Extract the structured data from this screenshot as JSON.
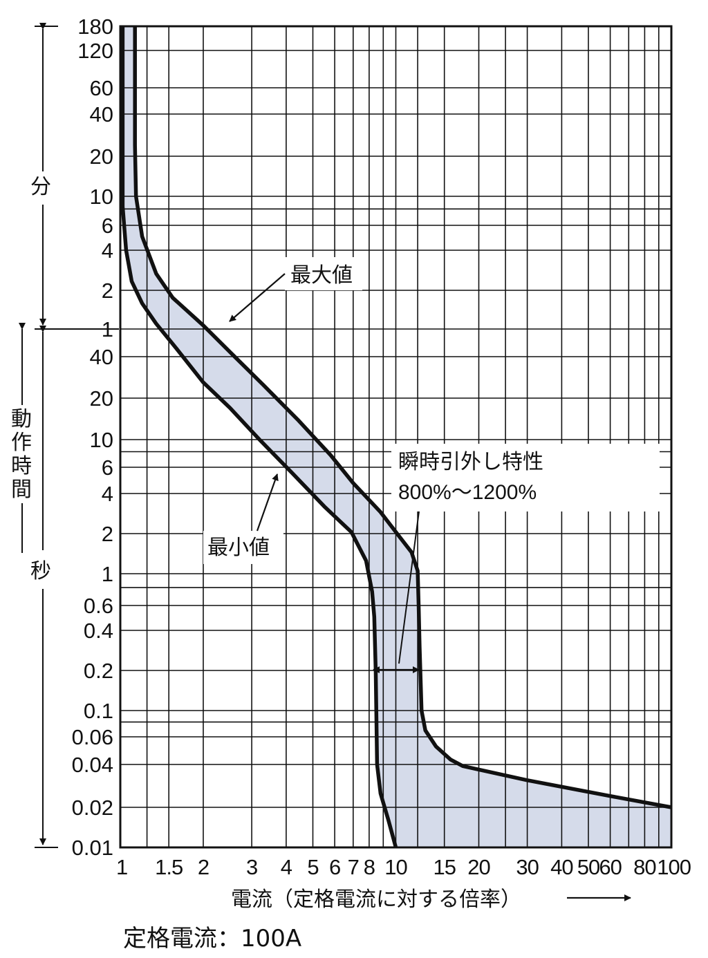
{
  "chart_data": {
    "type": "area",
    "x_scale": "log",
    "y_scale": "log",
    "xlim": [
      1,
      100
    ],
    "ylim_seconds": [
      0.01,
      10800
    ],
    "grid": true,
    "x_ticks": [
      {
        "value": 1,
        "label": "1"
      },
      {
        "value": 1.5,
        "label": "1.5"
      },
      {
        "value": 2,
        "label": "2"
      },
      {
        "value": 3,
        "label": "3"
      },
      {
        "value": 4,
        "label": "4"
      },
      {
        "value": 5,
        "label": "5"
      },
      {
        "value": 6,
        "label": "6"
      },
      {
        "value": 7,
        "label": "7"
      },
      {
        "value": 8,
        "label": "8"
      },
      {
        "value": 10,
        "label": "10"
      },
      {
        "value": 15,
        "label": "15"
      },
      {
        "value": 20,
        "label": "20"
      },
      {
        "value": 30,
        "label": "30"
      },
      {
        "value": 40,
        "label": "40"
      },
      {
        "value": 50,
        "label": "50"
      },
      {
        "value": 60,
        "label": "60"
      },
      {
        "value": 80,
        "label": "80"
      },
      {
        "value": 100,
        "label": "100"
      }
    ],
    "x_grid": [
      1.25,
      1.5,
      2,
      3,
      4,
      5,
      6,
      7,
      8,
      9,
      10,
      12,
      15,
      20,
      25,
      30,
      40,
      50,
      60,
      70,
      80,
      90
    ],
    "y_ticks": [
      {
        "seconds": 10800,
        "label": "180"
      },
      {
        "seconds": 7200,
        "label": "120"
      },
      {
        "seconds": 3600,
        "label": "60"
      },
      {
        "seconds": 2400,
        "label": "40"
      },
      {
        "seconds": 1200,
        "label": "20"
      },
      {
        "seconds": 600,
        "label": "10"
      },
      {
        "seconds": 360,
        "label": "6"
      },
      {
        "seconds": 240,
        "label": "4"
      },
      {
        "seconds": 120,
        "label": "2"
      },
      {
        "seconds": 60,
        "label": "1"
      },
      {
        "seconds": 40,
        "label": "40"
      },
      {
        "seconds": 20,
        "label": "20"
      },
      {
        "seconds": 10,
        "label": "10"
      },
      {
        "seconds": 6,
        "label": "6"
      },
      {
        "seconds": 4,
        "label": "4"
      },
      {
        "seconds": 2,
        "label": "2"
      },
      {
        "seconds": 1,
        "label": "1"
      },
      {
        "seconds": 0.6,
        "label": "0.6"
      },
      {
        "seconds": 0.4,
        "label": "0.4"
      },
      {
        "seconds": 0.2,
        "label": "0.2"
      },
      {
        "seconds": 0.1,
        "label": "0.1"
      },
      {
        "seconds": 0.06,
        "label": "0.06"
      },
      {
        "seconds": 0.04,
        "label": "0.04"
      },
      {
        "seconds": 0.02,
        "label": "0.02"
      },
      {
        "seconds": 0.01,
        "label": "0.01"
      }
    ],
    "y_grid_seconds": [
      10800,
      7200,
      3600,
      2400,
      1200,
      600,
      480,
      360,
      240,
      120,
      60,
      40,
      20,
      10,
      8,
      6,
      4,
      2,
      1,
      0.8,
      0.6,
      0.4,
      0.2,
      0.1,
      0.08,
      0.06,
      0.04,
      0.02
    ],
    "series": [
      {
        "name": "最大値",
        "points": [
          [
            1.13,
            10800
          ],
          [
            1.13,
            1440
          ],
          [
            1.14,
            600
          ],
          [
            1.2,
            300
          ],
          [
            1.35,
            160
          ],
          [
            1.55,
            105
          ],
          [
            2.0,
            64
          ],
          [
            2.6,
            40
          ],
          [
            3.3,
            25
          ],
          [
            4.4,
            14
          ],
          [
            5.8,
            7.5
          ],
          [
            7.0,
            4.7
          ],
          [
            8.8,
            2.9
          ],
          [
            10.2,
            1.95
          ],
          [
            11.4,
            1.45
          ],
          [
            12.0,
            1.05
          ],
          [
            12.1,
            0.6
          ],
          [
            12.2,
            0.3
          ],
          [
            12.4,
            0.1
          ],
          [
            12.8,
            0.068
          ],
          [
            14.0,
            0.052
          ],
          [
            15.8,
            0.043
          ],
          [
            17.5,
            0.039
          ],
          [
            30,
            0.031
          ],
          [
            60,
            0.024
          ],
          [
            100,
            0.02
          ]
        ]
      },
      {
        "name": "最小値",
        "points": [
          [
            1.02,
            10800
          ],
          [
            1.02,
            1200
          ],
          [
            1.02,
            500
          ],
          [
            1.05,
            240
          ],
          [
            1.1,
            140
          ],
          [
            1.2,
            95
          ],
          [
            1.35,
            66
          ],
          [
            1.6,
            45
          ],
          [
            2.0,
            26
          ],
          [
            2.5,
            17
          ],
          [
            3.2,
            10
          ],
          [
            4.2,
            5.5
          ],
          [
            5.5,
            3.2
          ],
          [
            6.9,
            2.05
          ],
          [
            7.8,
            1.25
          ],
          [
            8.2,
            0.75
          ],
          [
            8.35,
            0.5
          ],
          [
            8.45,
            0.2
          ],
          [
            8.55,
            0.04
          ],
          [
            8.8,
            0.025
          ],
          [
            9.4,
            0.016
          ],
          [
            10.0,
            0.01
          ]
        ]
      }
    ],
    "annotations": {
      "max_label": "最大値",
      "min_label": "最小値",
      "instant_title": "瞬時引外し特性",
      "instant_range": "800%〜1200%"
    },
    "x_axis_label": "電流（定格電流に対する倍率）",
    "y_axis_labels": {
      "minutes": "分",
      "operating_time": [
        "動",
        "作",
        "時",
        "間"
      ],
      "seconds": "秒"
    },
    "colors": {
      "band_fill": "#d5dbea",
      "lines": "#111111",
      "grid": "#111111",
      "callout_bg": "#ffffff"
    }
  },
  "footer": {
    "rated_current": "定格電流：100A"
  }
}
